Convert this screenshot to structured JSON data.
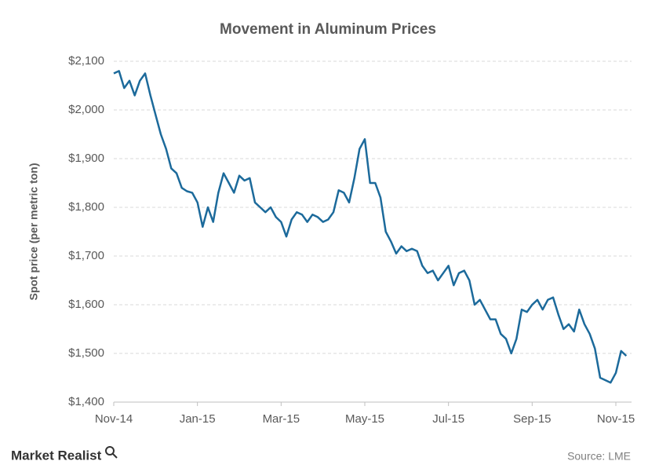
{
  "chart_data": {
    "type": "line",
    "title": "Movement in Aluminum Prices",
    "y_label": "Spot price (per metric ton)",
    "categories": [
      "Nov-14",
      null,
      null,
      null,
      null,
      null,
      null,
      null,
      null,
      null,
      null,
      null,
      null,
      null,
      null,
      null,
      "Jan-15",
      null,
      null,
      null,
      null,
      null,
      null,
      null,
      null,
      null,
      null,
      null,
      null,
      null,
      null,
      null,
      "Mar-15",
      null,
      null,
      null,
      null,
      null,
      null,
      null,
      null,
      null,
      null,
      null,
      null,
      null,
      null,
      null,
      "May-15",
      null,
      null,
      null,
      null,
      null,
      null,
      null,
      null,
      null,
      null,
      null,
      null,
      null,
      null,
      null,
      "Jul-15",
      null,
      null,
      null,
      null,
      null,
      null,
      null,
      null,
      null,
      null,
      null,
      null,
      null,
      null,
      null,
      "Sep-15",
      null,
      null,
      null,
      null,
      null,
      null,
      null,
      null,
      null,
      null,
      null,
      null,
      null,
      null,
      null,
      "Nov-15",
      null,
      null
    ],
    "series": [
      {
        "name": "Aluminum",
        "color": "#1c6a9b",
        "values": [
          2075,
          2080,
          2045,
          2060,
          2030,
          2060,
          2075,
          2030,
          1990,
          1950,
          1920,
          1880,
          1870,
          1840,
          1833,
          1830,
          1810,
          1760,
          1800,
          1770,
          1830,
          1870,
          1850,
          1830,
          1865,
          1855,
          1860,
          1810,
          1800,
          1790,
          1800,
          1780,
          1770,
          1740,
          1775,
          1790,
          1785,
          1770,
          1785,
          1780,
          1770,
          1775,
          1790,
          1835,
          1830,
          1810,
          1860,
          1920,
          1940,
          1850,
          1850,
          1820,
          1750,
          1730,
          1705,
          1720,
          1710,
          1715,
          1710,
          1680,
          1665,
          1670,
          1650,
          1665,
          1680,
          1640,
          1665,
          1670,
          1650,
          1600,
          1610,
          1590,
          1570,
          1570,
          1540,
          1530,
          1500,
          1530,
          1590,
          1585,
          1600,
          1610,
          1590,
          1610,
          1615,
          1580,
          1550,
          1560,
          1545,
          1590,
          1560,
          1540,
          1510,
          1450,
          1445,
          1440,
          1460,
          1505,
          1495
        ]
      }
    ],
    "ylim": [
      1400,
      2100
    ],
    "yticks": [
      {
        "value": 1400,
        "label": "$1,400"
      },
      {
        "value": 1500,
        "label": "$1,500"
      },
      {
        "value": 1600,
        "label": "$1,600"
      },
      {
        "value": 1700,
        "label": "$1,700"
      },
      {
        "value": 1800,
        "label": "$1,800"
      },
      {
        "value": 1900,
        "label": "$1,900"
      },
      {
        "value": 2000,
        "label": "$2,000"
      },
      {
        "value": 2100,
        "label": "$2,100"
      }
    ],
    "grid": true
  },
  "source": "Source: LME",
  "logo": "Market Realist"
}
